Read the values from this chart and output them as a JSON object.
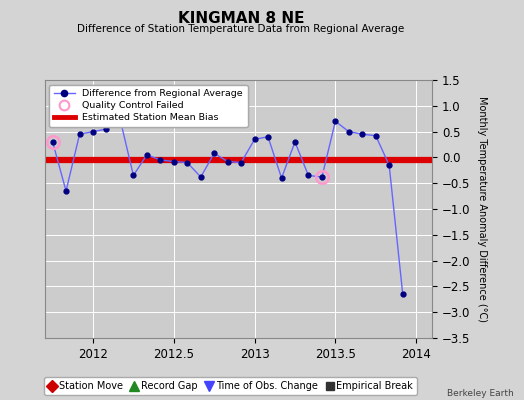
{
  "title": "KINGMAN 8 NE",
  "subtitle": "Difference of Station Temperature Data from Regional Average",
  "ylabel_right": "Monthly Temperature Anomaly Difference (°C)",
  "credit": "Berkeley Earth",
  "xlim": [
    2011.7,
    2014.1
  ],
  "ylim": [
    -3.5,
    1.5
  ],
  "yticks": [
    -3.5,
    -3,
    -2.5,
    -2,
    -1.5,
    -1,
    -0.5,
    0,
    0.5,
    1,
    1.5
  ],
  "xticks": [
    2012,
    2012.5,
    2013,
    2013.5,
    2014
  ],
  "xticklabels": [
    "2012",
    "2012.5",
    "2013",
    "2013.5",
    "2014"
  ],
  "bias_y": -0.05,
  "line_color": "#6666ff",
  "line_marker_color": "#000080",
  "bias_color": "#dd0000",
  "qc_fail_color": "#ff99cc",
  "bg_color": "#d4d4d4",
  "plot_bg_color": "#cccccc",
  "x_data": [
    2011.75,
    2011.833,
    2011.917,
    2012.0,
    2012.083,
    2012.167,
    2012.25,
    2012.333,
    2012.417,
    2012.5,
    2012.583,
    2012.667,
    2012.75,
    2012.833,
    2012.917,
    2013.0,
    2013.083,
    2013.167,
    2013.25,
    2013.333,
    2013.417,
    2013.5,
    2013.583,
    2013.667,
    2013.75,
    2013.833,
    2013.917
  ],
  "y_data": [
    0.3,
    -0.65,
    0.45,
    0.5,
    0.55,
    0.75,
    -0.35,
    0.05,
    -0.05,
    -0.08,
    -0.1,
    -0.38,
    0.08,
    -0.08,
    -0.1,
    0.35,
    0.4,
    -0.4,
    0.3,
    -0.35,
    -0.38,
    0.7,
    0.5,
    0.45,
    0.42,
    -0.15,
    -2.65
  ],
  "qc_fail_indices": [
    0,
    20
  ],
  "legend_entries": [
    {
      "label": "Difference from Regional Average",
      "type": "line",
      "color": "#6666ff",
      "marker": "o",
      "markercolor": "#000080"
    },
    {
      "label": "Quality Control Failed",
      "type": "scatter",
      "color": "#ff99cc"
    },
    {
      "label": "Estimated Station Mean Bias",
      "type": "line",
      "color": "#dd0000"
    }
  ],
  "bottom_legend": [
    {
      "label": "Station Move",
      "marker": "D",
      "color": "#cc0000"
    },
    {
      "label": "Record Gap",
      "marker": "^",
      "color": "#228822"
    },
    {
      "label": "Time of Obs. Change",
      "marker": "v",
      "color": "#4444ff"
    },
    {
      "label": "Empirical Break",
      "marker": "s",
      "color": "#333333"
    }
  ]
}
